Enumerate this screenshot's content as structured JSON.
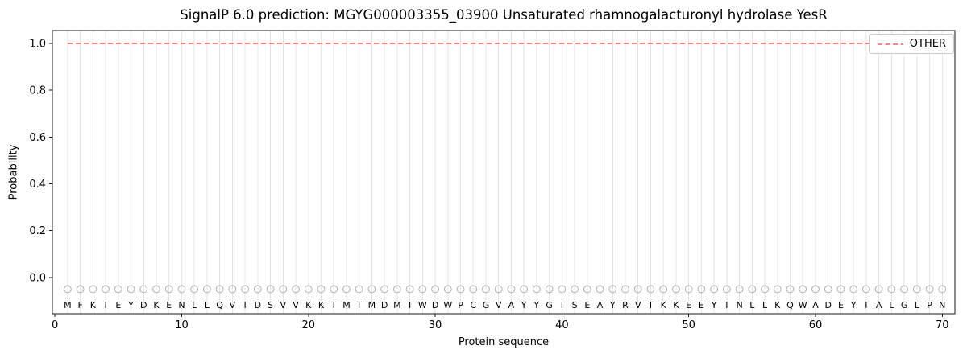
{
  "chart_data": {
    "type": "line",
    "title": "SignalP 6.0 prediction: MGYG000003355_03900 Unsaturated rhamnogalacturonyl hydrolase YesR",
    "xlabel": "Protein sequence",
    "ylabel": "Probability",
    "xlim": [
      -0.2,
      71.0
    ],
    "ylim": [
      -0.155,
      1.055
    ],
    "xticks": [
      0,
      10,
      20,
      30,
      40,
      50,
      60,
      70
    ],
    "yticks": [
      "0.0",
      "0.2",
      "0.4",
      "0.6",
      "0.8",
      "1.0"
    ],
    "grid": "vertical-line-per-residue",
    "legend_position": "upper right",
    "sequence": "MFKIEYDKENLLQVIDSVVKKTMTMDMTWDWPCGVAYYGISEAYRVTKKEEYINLLKQWADEYIALGLPN",
    "series": [
      {
        "name": "OTHER",
        "color": "#ff5c5c",
        "dashed": true,
        "x_start": 1,
        "values": [
          1,
          1,
          1,
          1,
          1,
          1,
          1,
          1,
          1,
          1,
          1,
          1,
          1,
          1,
          1,
          1,
          1,
          1,
          1,
          1,
          1,
          1,
          1,
          1,
          1,
          1,
          1,
          1,
          1,
          1,
          1,
          1,
          1,
          1,
          1,
          1,
          1,
          1,
          1,
          1,
          1,
          1,
          1,
          1,
          1,
          1,
          1,
          1,
          1,
          1,
          1,
          1,
          1,
          1,
          1,
          1,
          1,
          1,
          1,
          1,
          1,
          1,
          1,
          1,
          1,
          1,
          1,
          1,
          1,
          1
        ]
      }
    ],
    "marker_y": -0.05,
    "letter_y": -0.118,
    "marker_shape": "open-circle",
    "colors": {
      "grid": "#e4e4e4",
      "spine": "#1a1a1a",
      "text": "#000000",
      "marker": "#b0b0b0"
    }
  }
}
